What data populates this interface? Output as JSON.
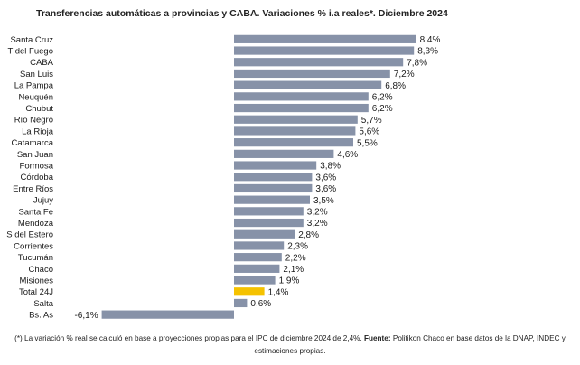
{
  "chart_data": {
    "type": "bar",
    "orientation": "horizontal",
    "title": "Transferencias automáticas a provincias y CABA. Variaciones % i.a reales*. Diciembre 2024",
    "categories": [
      "Santa Cruz",
      "T del Fuego",
      "CABA",
      "San Luis",
      "La Pampa",
      "Neuquén",
      "Chubut",
      "Río Negro",
      "La Rioja",
      "Catamarca",
      "San Juan",
      "Formosa",
      "Córdoba",
      "Entre Ríos",
      "Jujuy",
      "Santa Fe",
      "Mendoza",
      "S del Estero",
      "Corrientes",
      "Tucumán",
      "Chaco",
      "Misiones",
      "Total 24J",
      "Salta",
      "Bs. As"
    ],
    "values": [
      8.4,
      8.3,
      7.8,
      7.2,
      6.8,
      6.2,
      6.2,
      5.7,
      5.6,
      5.5,
      4.6,
      3.8,
      3.6,
      3.6,
      3.5,
      3.2,
      3.2,
      2.8,
      2.3,
      2.2,
      2.1,
      1.9,
      1.4,
      0.6,
      -6.1
    ],
    "value_labels": [
      "8,4%",
      "8,3%",
      "7,8%",
      "7,2%",
      "6,8%",
      "6,2%",
      "6,2%",
      "5,7%",
      "5,6%",
      "5,5%",
      "4,6%",
      "3,8%",
      "3,6%",
      "3,6%",
      "3,5%",
      "3,2%",
      "3,2%",
      "2,8%",
      "2,3%",
      "2,2%",
      "2,1%",
      "1,9%",
      "1,4%",
      "0,6%",
      "-6,1%"
    ],
    "highlight_category": "Total 24J",
    "colors": {
      "bar": "#8792a8",
      "highlight": "#f5c200"
    },
    "grid": false,
    "legend": "none"
  },
  "footnote": {
    "text": "(*) La variación % real se calculó en base a proyecciones propias para el IPC de diciembre 2024 de 2,4%.",
    "source_label": "Fuente:",
    "source_text": "Politikon Chaco en base datos de la DNAP, INDEC y estimaciones propias."
  }
}
